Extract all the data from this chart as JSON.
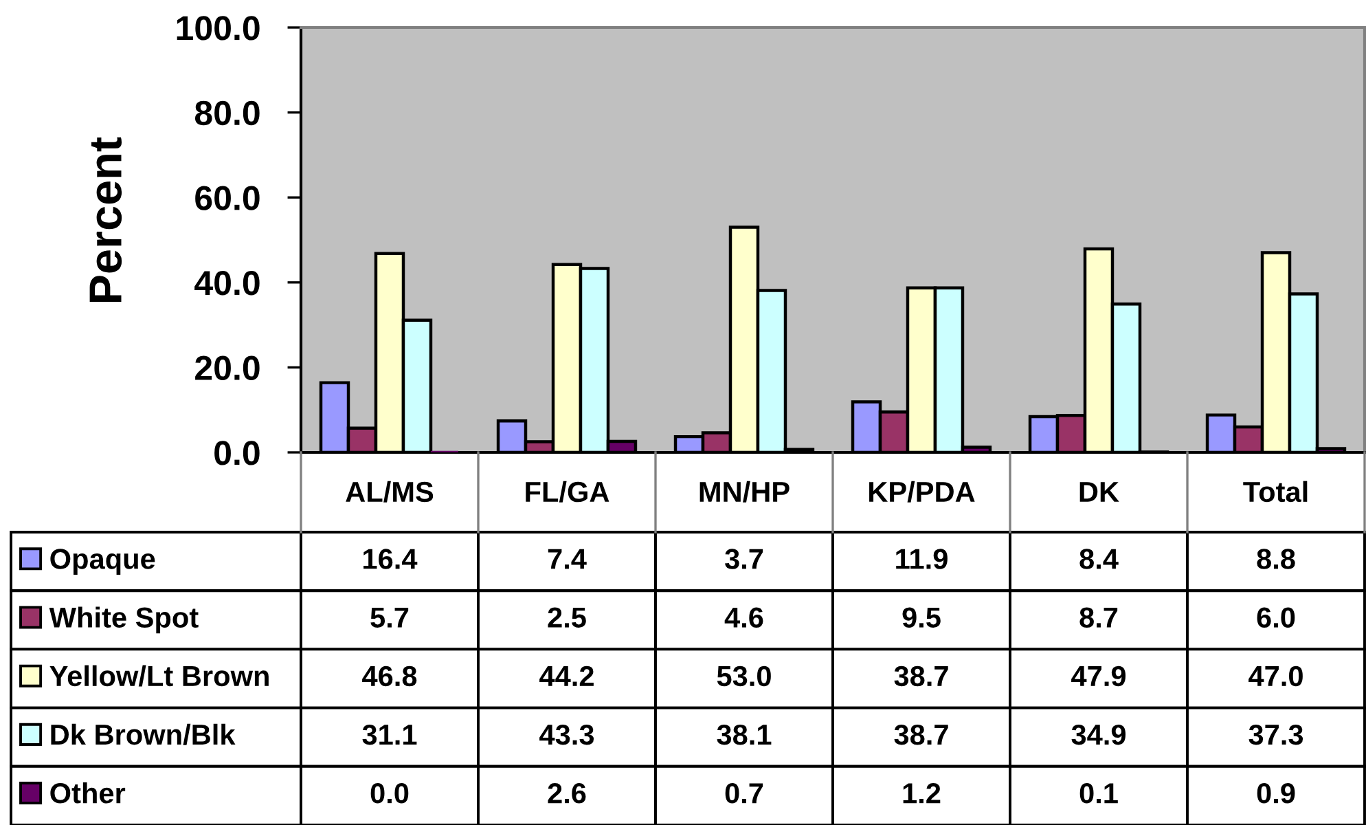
{
  "chart_data": {
    "type": "bar",
    "ylabel": "Percent",
    "categories": [
      "AL/MS",
      "FL/GA",
      "MN/HP",
      "KP/PDA",
      "DK",
      "Total"
    ],
    "series": [
      {
        "name": "Opaque",
        "color": "#9999ff",
        "values": [
          16.4,
          7.4,
          3.7,
          11.9,
          8.4,
          8.8
        ],
        "value_labels": [
          "16.4",
          "7.4",
          "3.7",
          "11.9",
          "8.4",
          "8.8"
        ]
      },
      {
        "name": "White Spot",
        "color": "#993366",
        "values": [
          5.7,
          2.5,
          4.6,
          9.5,
          8.7,
          6.0
        ],
        "value_labels": [
          "5.7",
          "2.5",
          "4.6",
          "9.5",
          "8.7",
          "6.0"
        ]
      },
      {
        "name": "Yellow/Lt Brown",
        "color": "#ffffcc",
        "values": [
          46.8,
          44.2,
          53.0,
          38.7,
          47.9,
          47.0
        ],
        "value_labels": [
          "46.8",
          "44.2",
          "53.0",
          "38.7",
          "47.9",
          "47.0"
        ]
      },
      {
        "name": "Dk Brown/Blk",
        "color": "#ccffff",
        "values": [
          31.1,
          43.3,
          38.1,
          38.7,
          34.9,
          37.3
        ],
        "value_labels": [
          "31.1",
          "43.3",
          "38.1",
          "38.7",
          "34.9",
          "37.3"
        ]
      },
      {
        "name": "Other",
        "color": "#660066",
        "values": [
          0.0,
          2.6,
          0.7,
          1.2,
          0.1,
          0.9
        ],
        "value_labels": [
          "0.0",
          "2.6",
          "0.7",
          "1.2",
          "0.1",
          "0.9"
        ]
      }
    ],
    "ylim": [
      0,
      100
    ],
    "yticks": [
      {
        "value": 0,
        "label": "0.0"
      },
      {
        "value": 20,
        "label": "20.0"
      },
      {
        "value": 40,
        "label": "40.0"
      },
      {
        "value": 60,
        "label": "60.0"
      },
      {
        "value": 80,
        "label": "80.0"
      },
      {
        "value": 100,
        "label": "100.0"
      }
    ],
    "legend": "bottom left"
  }
}
